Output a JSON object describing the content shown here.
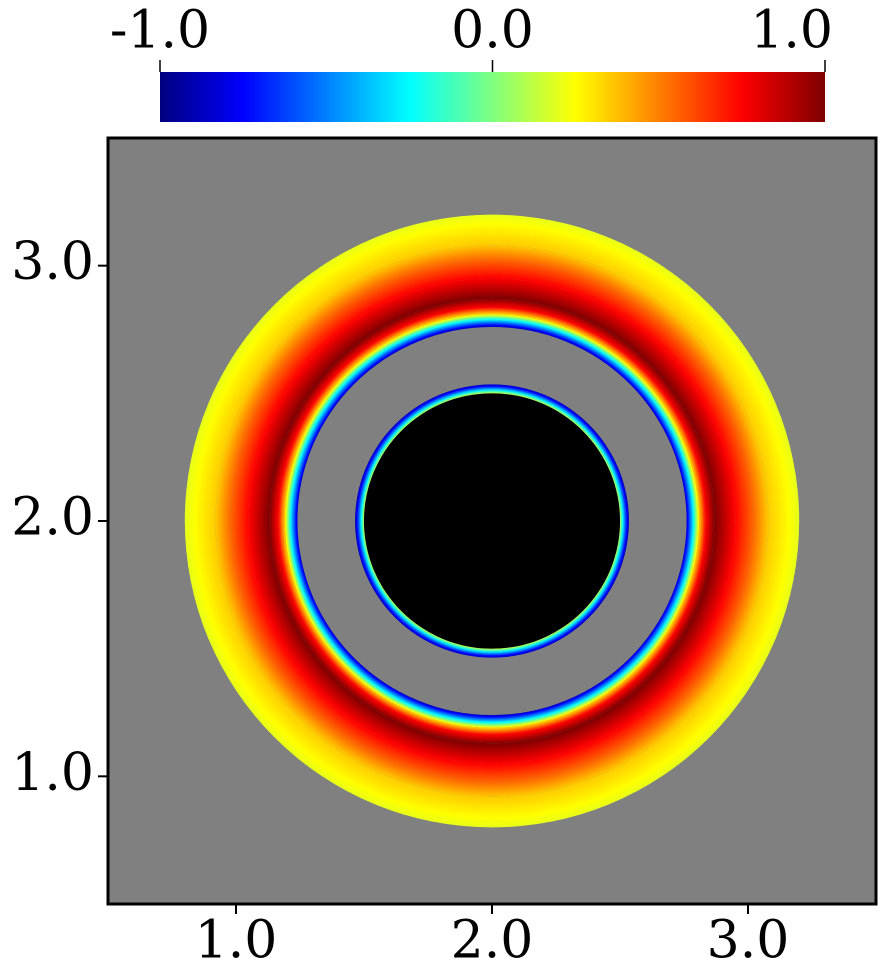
{
  "chart_data": {
    "type": "radial_field",
    "center": [
      2,
      2
    ],
    "xlim": [
      0.5,
      3.5
    ],
    "ylim": [
      0.5,
      3.5
    ],
    "xticks": [
      {
        "value": 1,
        "label": "1.0"
      },
      {
        "value": 2,
        "label": "2.0"
      },
      {
        "value": 3,
        "label": "3.0"
      }
    ],
    "yticks": [
      {
        "value": 1,
        "label": "1.0"
      },
      {
        "value": 2,
        "label": "2.0"
      },
      {
        "value": 3,
        "label": "3.0"
      }
    ],
    "clim": [
      -1,
      1
    ],
    "cticks": [
      {
        "value": -1,
        "label": "-1.0"
      },
      {
        "value": 0,
        "label": "0.0"
      },
      {
        "value": 1,
        "label": "1.0"
      }
    ],
    "colormap": {
      "values": [
        -1,
        -0.75,
        -0.25,
        0.25,
        0.75,
        1
      ],
      "colors": [
        "#00007f",
        "#0000ff",
        "#00ffff",
        "#ffff00",
        "#ff0000",
        "#7f0000"
      ]
    },
    "background": "#808080",
    "solid": {
      "radius": 0.5,
      "color": "#000000"
    },
    "rings": [
      {
        "r": [
          0.5,
          0.512,
          0.525,
          0.535
        ],
        "values": [
          0.1,
          -0.3,
          -0.7,
          -0.9
        ]
      },
      {
        "r": [
          0.76,
          0.785,
          0.81,
          0.835,
          0.87,
          0.95,
          1.02,
          1.08,
          1.2
        ],
        "values": [
          -0.85,
          -0.3,
          0.35,
          0.75,
          1.0,
          0.75,
          0.55,
          0.35,
          0.2
        ]
      }
    ]
  }
}
